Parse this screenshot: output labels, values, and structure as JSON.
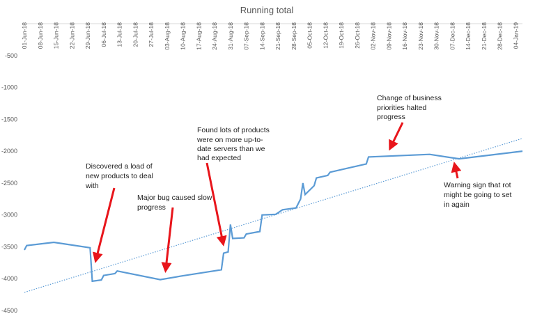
{
  "chart_data": {
    "type": "line",
    "title": "Running total",
    "xlim": [
      "2018-06-01",
      "2019-01-07"
    ],
    "xticks": [
      {
        "value": "2018-06-01",
        "label": "01-Jun-18"
      },
      {
        "value": "2018-06-08",
        "label": "08-Jun-18"
      },
      {
        "value": "2018-06-15",
        "label": "15-Jun-18"
      },
      {
        "value": "2018-06-22",
        "label": "22-Jun-18"
      },
      {
        "value": "2018-06-29",
        "label": "29-Jun-18"
      },
      {
        "value": "2018-07-06",
        "label": "06-Jul-18"
      },
      {
        "value": "2018-07-13",
        "label": "13-Jul-18"
      },
      {
        "value": "2018-07-20",
        "label": "20-Jul-18"
      },
      {
        "value": "2018-07-27",
        "label": "27-Jul-18"
      },
      {
        "value": "2018-08-03",
        "label": "03-Aug-18"
      },
      {
        "value": "2018-08-10",
        "label": "10-Aug-18"
      },
      {
        "value": "2018-08-17",
        "label": "17-Aug-18"
      },
      {
        "value": "2018-08-24",
        "label": "24-Aug-18"
      },
      {
        "value": "2018-08-31",
        "label": "31-Aug-18"
      },
      {
        "value": "2018-09-07",
        "label": "07-Sep-18"
      },
      {
        "value": "2018-09-14",
        "label": "14-Sep-18"
      },
      {
        "value": "2018-09-21",
        "label": "21-Sep-18"
      },
      {
        "value": "2018-09-28",
        "label": "28-Sep-18"
      },
      {
        "value": "2018-10-05",
        "label": "05-Oct-18"
      },
      {
        "value": "2018-10-12",
        "label": "12-Oct-18"
      },
      {
        "value": "2018-10-19",
        "label": "19-Oct-18"
      },
      {
        "value": "2018-10-26",
        "label": "26-Oct-18"
      },
      {
        "value": "2018-11-02",
        "label": "02-Nov-18"
      },
      {
        "value": "2018-11-09",
        "label": "09-Nov-18"
      },
      {
        "value": "2018-11-16",
        "label": "16-Nov-18"
      },
      {
        "value": "2018-11-23",
        "label": "23-Nov-18"
      },
      {
        "value": "2018-11-30",
        "label": "30-Nov-18"
      },
      {
        "value": "2018-12-07",
        "label": "07-Dec-18"
      },
      {
        "value": "2018-12-14",
        "label": "14-Dec-18"
      },
      {
        "value": "2018-12-21",
        "label": "21-Dec-18"
      },
      {
        "value": "2018-12-28",
        "label": "28-Dec-18"
      },
      {
        "value": "2019-01-04",
        "label": "04-Jan-19"
      }
    ],
    "ylim": [
      -4500,
      0
    ],
    "yticks": [
      -500,
      -1000,
      -1500,
      -2000,
      -2500,
      -3000,
      -3500,
      -4000,
      -4500
    ],
    "series": [
      {
        "color": "#5b9bd5",
        "x": [
          "2018-06-01",
          "2018-06-02",
          "2018-06-14",
          "2018-06-30",
          "2018-07-01",
          "2018-07-05",
          "2018-07-06",
          "2018-07-11",
          "2018-07-12",
          "2018-07-31",
          "2018-08-09",
          "2018-08-27",
          "2018-08-28",
          "2018-08-30",
          "2018-08-31",
          "2018-09-01",
          "2018-09-06",
          "2018-09-07",
          "2018-09-13",
          "2018-09-14",
          "2018-09-20",
          "2018-09-23",
          "2018-09-29",
          "2018-10-01",
          "2018-10-02",
          "2018-10-03",
          "2018-10-07",
          "2018-10-08",
          "2018-10-13",
          "2018-10-14",
          "2018-10-30",
          "2018-10-31",
          "2018-11-27",
          "2018-12-10",
          "2019-01-07"
        ],
        "values": [
          -3550,
          -3480,
          -3430,
          -3515,
          -4040,
          -4020,
          -3950,
          -3920,
          -3880,
          -4015,
          -3960,
          -3860,
          -3600,
          -3580,
          -3150,
          -3370,
          -3360,
          -3300,
          -3260,
          -3000,
          -2990,
          -2920,
          -2890,
          -2750,
          -2500,
          -2680,
          -2540,
          -2420,
          -2380,
          -2330,
          -2200,
          -2090,
          -2050,
          -2120,
          -2000
        ]
      },
      {
        "color": "#5b9bd5",
        "dotted": true,
        "x": [
          "2018-06-01",
          "2019-01-07"
        ],
        "values": [
          -4215,
          -1800
        ]
      }
    ],
    "annotations": [
      {
        "lines": [
          "Discovered a load of",
          "new products to deal",
          "with"
        ]
      },
      {
        "lines": [
          "Major bug caused slow",
          "progress"
        ]
      },
      {
        "lines": [
          "Found lots of products",
          "were on more up-to-",
          "date servers than we",
          "had expected"
        ]
      },
      {
        "lines": [
          "Change of business",
          "priorities halted",
          "progress"
        ]
      },
      {
        "lines": [
          "Warning sign that rot",
          "might be going to set",
          "in again"
        ]
      }
    ]
  }
}
